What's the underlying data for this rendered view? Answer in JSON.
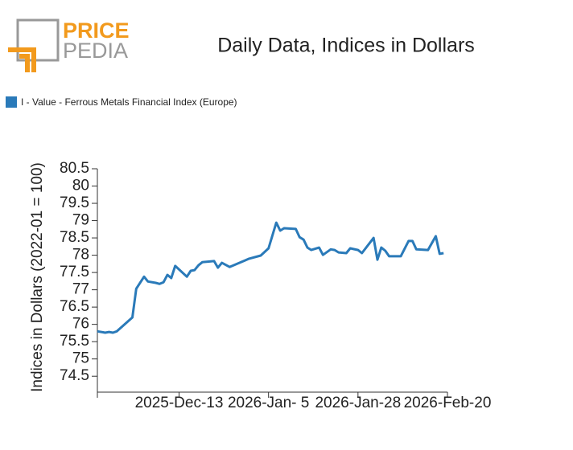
{
  "logo": {
    "top": "PRICE",
    "bottom": "PEDIA"
  },
  "chart_data": {
    "type": "line",
    "title": "Daily Data, Indices in Dollars",
    "y_label": "Indices in Dollars (2022-01 = 100)",
    "x": [
      "2025-11-22",
      "2025-11-23",
      "2025-11-24",
      "2025-11-25",
      "2025-11-26",
      "2025-11-27",
      "2025-12-01",
      "2025-12-02",
      "2025-12-04",
      "2025-12-05",
      "2025-12-07",
      "2025-12-08",
      "2025-12-09",
      "2025-12-10",
      "2025-12-11",
      "2025-12-12",
      "2025-12-15",
      "2025-12-16",
      "2025-12-17",
      "2025-12-18",
      "2025-12-19",
      "2025-12-22",
      "2025-12-23",
      "2025-12-24",
      "2025-12-26",
      "2025-12-30",
      "2025-12-31",
      "2026-01-03",
      "2026-01-05",
      "2026-01-07",
      "2026-01-08",
      "2026-01-09",
      "2026-01-12",
      "2026-01-13",
      "2026-01-14",
      "2026-01-15",
      "2026-01-16",
      "2026-01-18",
      "2026-01-19",
      "2026-01-21",
      "2026-01-22",
      "2026-01-23",
      "2026-01-25",
      "2026-01-26",
      "2026-01-28",
      "2026-01-29",
      "2026-02-01",
      "2026-02-02",
      "2026-02-03",
      "2026-02-04",
      "2026-02-05",
      "2026-02-08",
      "2026-02-10",
      "2026-02-11",
      "2026-02-12",
      "2026-02-15",
      "2026-02-17",
      "2026-02-18",
      "2026-02-19"
    ],
    "series": [
      {
        "name": "I - Value - Ferrous Metals Financial Index (Europe)",
        "color": "#2a7ab9",
        "values": [
          75.8,
          75.78,
          75.76,
          75.78,
          75.76,
          75.8,
          76.2,
          77.03,
          77.38,
          77.24,
          77.2,
          77.17,
          77.22,
          77.43,
          77.34,
          77.69,
          77.38,
          77.55,
          77.57,
          77.71,
          77.8,
          77.83,
          77.64,
          77.78,
          77.66,
          77.85,
          77.9,
          77.99,
          78.2,
          78.94,
          78.71,
          78.78,
          78.76,
          78.52,
          78.45,
          78.22,
          78.15,
          78.22,
          78.01,
          78.17,
          78.15,
          78.08,
          78.06,
          78.2,
          78.15,
          78.06,
          78.5,
          77.87,
          78.22,
          78.13,
          77.97,
          77.97,
          78.41,
          78.41,
          78.17,
          78.15,
          78.55,
          78.04,
          78.06
        ]
      }
    ],
    "xlim": [
      "2025-11-22",
      "2026-02-20"
    ],
    "xticks": [
      {
        "value": "2025-12-13",
        "label": "2025-Dec-13"
      },
      {
        "value": "2026-01-05",
        "label": "2026-Jan- 5"
      },
      {
        "value": "2026-01-28",
        "label": "2026-Jan-28"
      },
      {
        "value": "2026-02-20",
        "label": "2026-Feb-20"
      }
    ],
    "ylim": [
      74.04,
      80.5
    ],
    "yticks": [
      74.5,
      75,
      75.5,
      76,
      76.5,
      77,
      77.5,
      78,
      78.5,
      79,
      79.5,
      80,
      80.5
    ],
    "legend": "top-left"
  }
}
